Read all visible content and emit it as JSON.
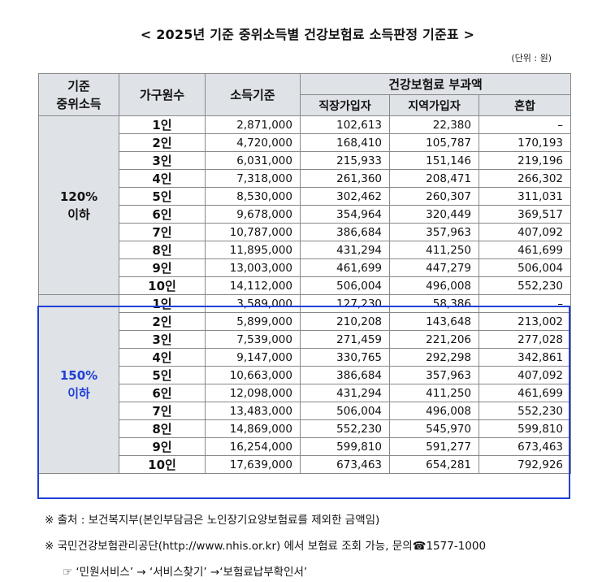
{
  "title": "< 2025년 기준 중위소득별 건강보험료 소득판정 기준표 >",
  "unit": "(단위 : 원)",
  "headers": {
    "median_income": "기준\n중위소득",
    "household_size": "가구원수",
    "income_standard": "소득기준",
    "premium_group": "건강보험료 부과액",
    "workplace": "직장가입자",
    "regional": "지역가입자",
    "mixed": "혼합"
  },
  "groups": [
    {
      "label": "120%\n이하",
      "rows": [
        {
          "size": "1인",
          "income": "2,871,000",
          "workplace": "102,613",
          "regional": "22,380",
          "mixed": "–"
        },
        {
          "size": "2인",
          "income": "4,720,000",
          "workplace": "168,410",
          "regional": "105,787",
          "mixed": "170,193"
        },
        {
          "size": "3인",
          "income": "6,031,000",
          "workplace": "215,933",
          "regional": "151,146",
          "mixed": "219,196"
        },
        {
          "size": "4인",
          "income": "7,318,000",
          "workplace": "261,360",
          "regional": "208,471",
          "mixed": "266,302"
        },
        {
          "size": "5인",
          "income": "8,530,000",
          "workplace": "302,462",
          "regional": "260,307",
          "mixed": "311,031"
        },
        {
          "size": "6인",
          "income": "9,678,000",
          "workplace": "354,964",
          "regional": "320,449",
          "mixed": "369,517"
        },
        {
          "size": "7인",
          "income": "10,787,000",
          "workplace": "386,684",
          "regional": "357,963",
          "mixed": "407,092"
        },
        {
          "size": "8인",
          "income": "11,895,000",
          "workplace": "431,294",
          "regional": "411,250",
          "mixed": "461,699"
        },
        {
          "size": "9인",
          "income": "13,003,000",
          "workplace": "461,699",
          "regional": "447,279",
          "mixed": "506,004"
        },
        {
          "size": "10인",
          "income": "14,112,000",
          "workplace": "506,004",
          "regional": "496,008",
          "mixed": "552,230"
        }
      ]
    },
    {
      "label": "150%\n이하",
      "rows": [
        {
          "size": "1인",
          "income": "3,589,000",
          "workplace": "127,230",
          "regional": "58,386",
          "mixed": "–"
        },
        {
          "size": "2인",
          "income": "5,899,000",
          "workplace": "210,208",
          "regional": "143,648",
          "mixed": "213,002"
        },
        {
          "size": "3인",
          "income": "7,539,000",
          "workplace": "271,459",
          "regional": "221,206",
          "mixed": "277,028"
        },
        {
          "size": "4인",
          "income": "9,147,000",
          "workplace": "330,765",
          "regional": "292,298",
          "mixed": "342,861"
        },
        {
          "size": "5인",
          "income": "10,663,000",
          "workplace": "386,684",
          "regional": "357,963",
          "mixed": "407,092"
        },
        {
          "size": "6인",
          "income": "12,098,000",
          "workplace": "431,294",
          "regional": "411,250",
          "mixed": "461,699"
        },
        {
          "size": "7인",
          "income": "13,483,000",
          "workplace": "506,004",
          "regional": "496,008",
          "mixed": "552,230"
        },
        {
          "size": "8인",
          "income": "14,869,000",
          "workplace": "552,230",
          "regional": "545,970",
          "mixed": "599,810"
        },
        {
          "size": "9인",
          "income": "16,254,000",
          "workplace": "599,810",
          "regional": "591,277",
          "mixed": "673,463"
        },
        {
          "size": "10인",
          "income": "17,639,000",
          "workplace": "673,463",
          "regional": "654,281",
          "mixed": "792,926"
        }
      ]
    }
  ],
  "notes": {
    "source": "※ 출처 : 보건복지부(본인부담금은 노인장기요양보험료를 제외한 금액임)",
    "contact": "※ 국민건강보험관리공단(http://www.nhis.or.kr) 에서 보험료 조회 가능, 문의☎1577-1000",
    "path": "☞ ‘민원서비스’ → ‘서비스찾기’ →‘보험료납부확인서’"
  },
  "colors": {
    "header_bg": "#dfe3e8",
    "highlight": "#1f3fd6"
  }
}
